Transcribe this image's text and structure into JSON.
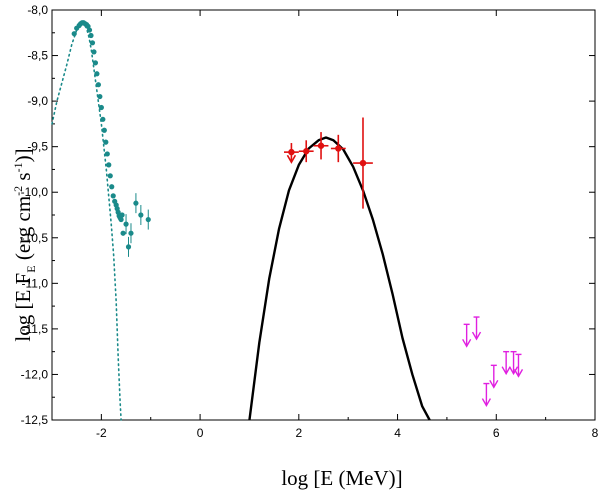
{
  "chart_data": {
    "type": "scatter",
    "xlabel": "log [E (MeV)]",
    "ylabel": "log [E F_E (erg cm^-2 s^-1)]",
    "xlim": [
      -3,
      8
    ],
    "ylim": [
      -12.5,
      -8.0
    ],
    "x_ticks": [
      -2,
      0,
      2,
      4,
      6,
      8
    ],
    "x_tick_labels": [
      "-2",
      "0",
      "2",
      "4",
      "6",
      "8"
    ],
    "y_ticks": [
      -8.0,
      -8.5,
      -9.0,
      -9.5,
      -10.0,
      -10.5,
      -11.0,
      -11.5,
      -12.0,
      -12.5
    ],
    "y_tick_labels": [
      "-8,0",
      "-8,5",
      "-9,0",
      "-9,5",
      "-10,0",
      "-10,5",
      "-11,0",
      "-11,5",
      "-12,0",
      "-12,5"
    ],
    "grid": false,
    "colors": {
      "teal": "#1a8a8a",
      "red": "#e01010",
      "magenta": "#e020e0",
      "black": "#000000"
    },
    "series": [
      {
        "style": "teal-dotted-model",
        "x": [
          -3.0,
          -2.9,
          -2.8,
          -2.7,
          -2.6,
          -2.5,
          -2.45,
          -2.4,
          -2.35,
          -2.3,
          -2.25,
          -2.2,
          -2.15,
          -2.1,
          -2.0,
          -1.95,
          -1.9,
          -1.85,
          -1.8,
          -1.75,
          -1.7,
          -1.68,
          -1.66,
          -1.64,
          -1.62,
          -1.6
        ],
        "y": [
          -9.25,
          -9.0,
          -8.8,
          -8.6,
          -8.38,
          -8.22,
          -8.17,
          -8.15,
          -8.16,
          -8.2,
          -8.3,
          -8.45,
          -8.65,
          -8.85,
          -9.25,
          -9.5,
          -9.75,
          -10.05,
          -10.35,
          -10.7,
          -11.2,
          -11.5,
          -11.8,
          -12.05,
          -12.3,
          -12.5
        ]
      },
      {
        "style": "teal-points",
        "x": [
          -2.55,
          -2.5,
          -2.45,
          -2.42,
          -2.39,
          -2.36,
          -2.33,
          -2.3,
          -2.27,
          -2.24,
          -2.21,
          -2.18,
          -2.15,
          -2.12,
          -2.09,
          -2.06,
          -2.03,
          -2.0,
          -1.97,
          -1.94,
          -1.91,
          -1.88,
          -1.85,
          -1.82,
          -1.79,
          -1.76,
          -1.73,
          -1.7,
          -1.68,
          -1.66,
          -1.64,
          -1.62,
          -1.6,
          -1.58,
          -1.56,
          -1.5,
          -1.45,
          -1.4,
          -1.3,
          -1.2,
          -1.05
        ],
        "y": [
          -8.26,
          -8.2,
          -8.17,
          -8.15,
          -8.14,
          -8.14,
          -8.15,
          -8.16,
          -8.18,
          -8.22,
          -8.28,
          -8.36,
          -8.46,
          -8.58,
          -8.7,
          -8.82,
          -8.95,
          -9.07,
          -9.2,
          -9.32,
          -9.45,
          -9.58,
          -9.7,
          -9.82,
          -9.94,
          -10.04,
          -10.1,
          -10.14,
          -10.18,
          -10.22,
          -10.26,
          -10.28,
          -10.3,
          -10.25,
          -10.45,
          -10.35,
          -10.6,
          -10.45,
          -10.12,
          -10.25,
          -10.3
        ]
      },
      {
        "style": "black-model-curve",
        "x": [
          1.0,
          1.2,
          1.4,
          1.6,
          1.8,
          2.0,
          2.2,
          2.4,
          2.55,
          2.7,
          2.9,
          3.1,
          3.3,
          3.5,
          3.7,
          3.9,
          4.1,
          4.3,
          4.5,
          4.65
        ],
        "y": [
          -12.5,
          -11.65,
          -10.95,
          -10.4,
          -9.98,
          -9.7,
          -9.52,
          -9.43,
          -9.4,
          -9.43,
          -9.53,
          -9.72,
          -9.98,
          -10.3,
          -10.68,
          -11.12,
          -11.6,
          -12.0,
          -12.35,
          -12.5
        ]
      },
      {
        "style": "red-points",
        "x": [
          1.85,
          2.15,
          2.45,
          2.8,
          3.3
        ],
        "y": [
          -9.56,
          -9.55,
          -9.49,
          -9.52,
          -9.68
        ],
        "yerr": [
          0.1,
          0.12,
          0.15,
          0.15,
          0.5
        ],
        "xerr": [
          0.15,
          0.15,
          0.15,
          0.15,
          0.2
        ],
        "upper_limit": [
          true,
          false,
          false,
          false,
          false
        ]
      },
      {
        "style": "magenta-upper-limits",
        "x": [
          5.4,
          5.6,
          5.8,
          5.95,
          6.2,
          6.35,
          6.45
        ],
        "y": [
          -11.45,
          -11.37,
          -12.1,
          -11.9,
          -11.75,
          -11.75,
          -11.78
        ],
        "upper_limit": [
          true,
          true,
          true,
          true,
          true,
          true,
          true
        ]
      }
    ]
  }
}
